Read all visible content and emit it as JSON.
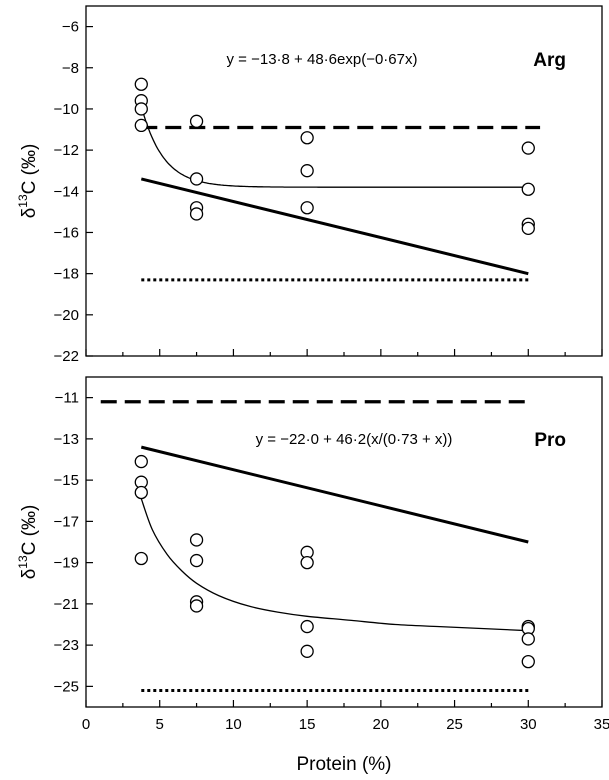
{
  "chart_data": [
    {
      "type": "scatter",
      "panel_label": "Arg",
      "equation": "y = −13·8 + 48·6exp(−0·67x)",
      "ylabel_prefix": "δ",
      "ylabel_sup": "13",
      "ylabel_suffix": "C (‰)",
      "xlim": [
        0,
        35
      ],
      "ylim": [
        -22,
        -5
      ],
      "yticks": [
        -6,
        -8,
        -10,
        -12,
        -14,
        -16,
        -18,
        -20,
        -22
      ],
      "yticklabels": [
        "−6",
        "−8",
        "−10",
        "−12",
        "−14",
        "−16",
        "−18",
        "−20",
        "−22"
      ],
      "points": [
        {
          "x": 3.75,
          "y": -8.8
        },
        {
          "x": 3.75,
          "y": -9.6
        },
        {
          "x": 3.75,
          "y": -10.0
        },
        {
          "x": 3.75,
          "y": -10.8
        },
        {
          "x": 7.5,
          "y": -10.6
        },
        {
          "x": 7.5,
          "y": -13.4
        },
        {
          "x": 7.5,
          "y": -14.8
        },
        {
          "x": 7.5,
          "y": -15.1
        },
        {
          "x": 15,
          "y": -11.4
        },
        {
          "x": 15,
          "y": -13.0
        },
        {
          "x": 15,
          "y": -14.8
        },
        {
          "x": 30,
          "y": -11.9
        },
        {
          "x": 30,
          "y": -13.9
        },
        {
          "x": 30,
          "y": -15.6
        },
        {
          "x": 30,
          "y": -15.8
        }
      ],
      "fit": {
        "model": "exponential",
        "a": -13.8,
        "b": 48.6,
        "c": -0.67,
        "x_range": [
          3.75,
          30
        ]
      },
      "solid_line": {
        "x": [
          3.75,
          30
        ],
        "y": [
          -13.4,
          -18.0
        ]
      },
      "dashed_line": {
        "x": [
          3.75,
          30.8
        ],
        "y": [
          -10.9,
          -10.9
        ]
      },
      "dotted_line": {
        "x": [
          3.75,
          30
        ],
        "y": [
          -18.3,
          -18.3
        ]
      }
    },
    {
      "type": "scatter",
      "panel_label": "Pro",
      "equation": "y = −22·0 + 46·2(x/(0·73 + x))",
      "ylabel_prefix": "δ",
      "ylabel_sup": "13",
      "ylabel_suffix": "C (‰)",
      "xlabel": "Protein (%)",
      "xlim": [
        0,
        35
      ],
      "ylim": [
        -26,
        -10
      ],
      "xticks": [
        0,
        5,
        10,
        15,
        20,
        25,
        30,
        35
      ],
      "xticklabels": [
        "0",
        "5",
        "10",
        "15",
        "20",
        "25",
        "30",
        "35"
      ],
      "yticks": [
        -11,
        -13,
        -15,
        -17,
        -19,
        -21,
        -23,
        -25
      ],
      "yticklabels": [
        "−11",
        "−13",
        "−15",
        "−17",
        "−19",
        "−21",
        "−23",
        "−25"
      ],
      "points": [
        {
          "x": 3.75,
          "y": -14.1
        },
        {
          "x": 3.75,
          "y": -15.1
        },
        {
          "x": 3.75,
          "y": -15.6
        },
        {
          "x": 3.75,
          "y": -18.8
        },
        {
          "x": 7.5,
          "y": -17.9
        },
        {
          "x": 7.5,
          "y": -18.9
        },
        {
          "x": 7.5,
          "y": -20.9
        },
        {
          "x": 7.5,
          "y": -21.1
        },
        {
          "x": 15,
          "y": -18.5
        },
        {
          "x": 15,
          "y": -19.0
        },
        {
          "x": 15,
          "y": -22.1
        },
        {
          "x": 15,
          "y": -23.3
        },
        {
          "x": 30,
          "y": -22.1
        },
        {
          "x": 30,
          "y": -22.2
        },
        {
          "x": 30,
          "y": -22.7
        },
        {
          "x": 30,
          "y": -23.8
        }
      ],
      "fit_curve": {
        "x": [
          3.75,
          4.5,
          5.5,
          6.5,
          7.5,
          9,
          11,
          13,
          15,
          18,
          21,
          24,
          27,
          30
        ],
        "y": [
          -15.9,
          -17.4,
          -18.6,
          -19.4,
          -20.0,
          -20.6,
          -21.1,
          -21.4,
          -21.6,
          -21.8,
          -22.0,
          -22.1,
          -22.2,
          -22.3
        ]
      },
      "solid_line": {
        "x": [
          3.75,
          30
        ],
        "y": [
          -13.4,
          -18.0
        ]
      },
      "dashed_line": {
        "x": [
          1.0,
          30.0
        ],
        "y": [
          -11.2,
          -11.2
        ]
      },
      "dotted_line": {
        "x": [
          3.75,
          30
        ],
        "y": [
          -25.2,
          -25.2
        ]
      }
    }
  ]
}
